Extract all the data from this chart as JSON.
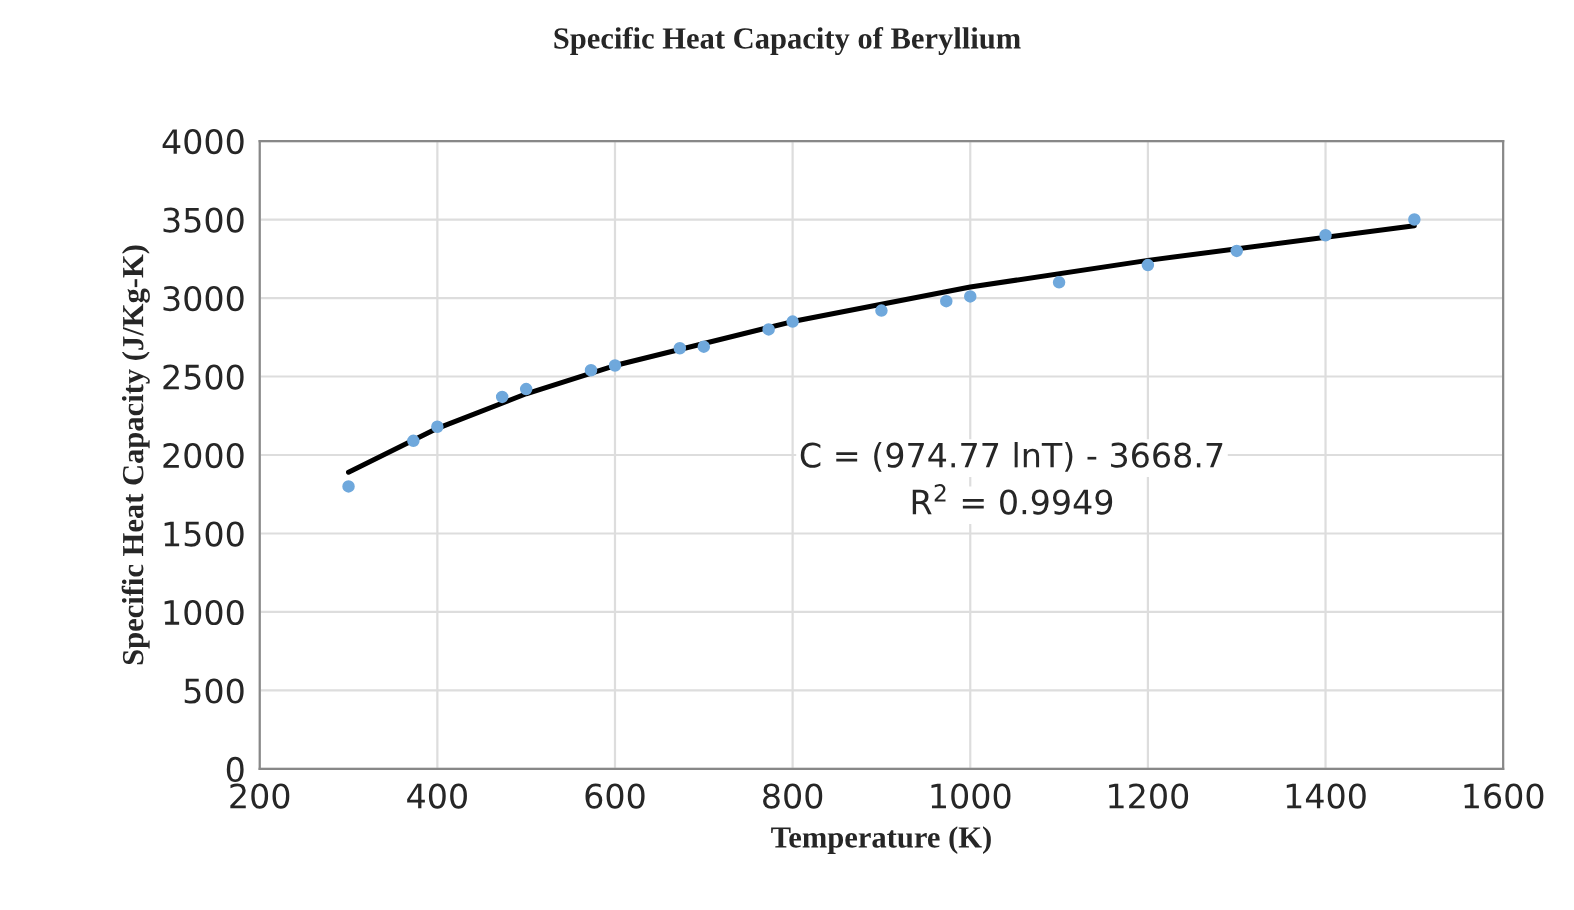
{
  "chart_data": {
    "type": "scatter",
    "title": "Specific Heat Capacity of Beryllium",
    "xlabel": "Temperature (K)",
    "ylabel": "Specific Heat Capacity (J/Kg-K)",
    "series": [
      {
        "marker": "circle",
        "color": "#6fa8dc",
        "x": [
          300,
          373,
          400,
          473,
          500,
          573,
          600,
          673,
          700,
          773,
          800,
          900,
          973,
          1000,
          1100,
          1200,
          1300,
          1400,
          1500
        ],
        "values": [
          1800,
          2090,
          2180,
          2370,
          2420,
          2540,
          2570,
          2680,
          2690,
          2800,
          2850,
          2920,
          2980,
          3010,
          3100,
          3210,
          3300,
          3400,
          3500
        ]
      },
      {
        "type": "line",
        "color": "#000000",
        "x": [
          300,
          400,
          500,
          600,
          800,
          1000,
          1200,
          1500
        ],
        "values": [
          1890,
          2170,
          2390,
          2570,
          2850,
          3070,
          3240,
          3460
        ]
      }
    ],
    "annotations": [
      "C = (974.77 lnT) - 3668.7",
      "R$^{2}$ = 0.9949"
    ],
    "xlim": [
      200,
      1600
    ],
    "xticks": [
      200,
      400,
      600,
      800,
      1000,
      1200,
      1400,
      1600
    ],
    "ylim": [
      0,
      4000
    ],
    "yticks": [
      0,
      500,
      1000,
      1500,
      2000,
      2500,
      3000,
      3500,
      4000
    ],
    "grid": true
  }
}
